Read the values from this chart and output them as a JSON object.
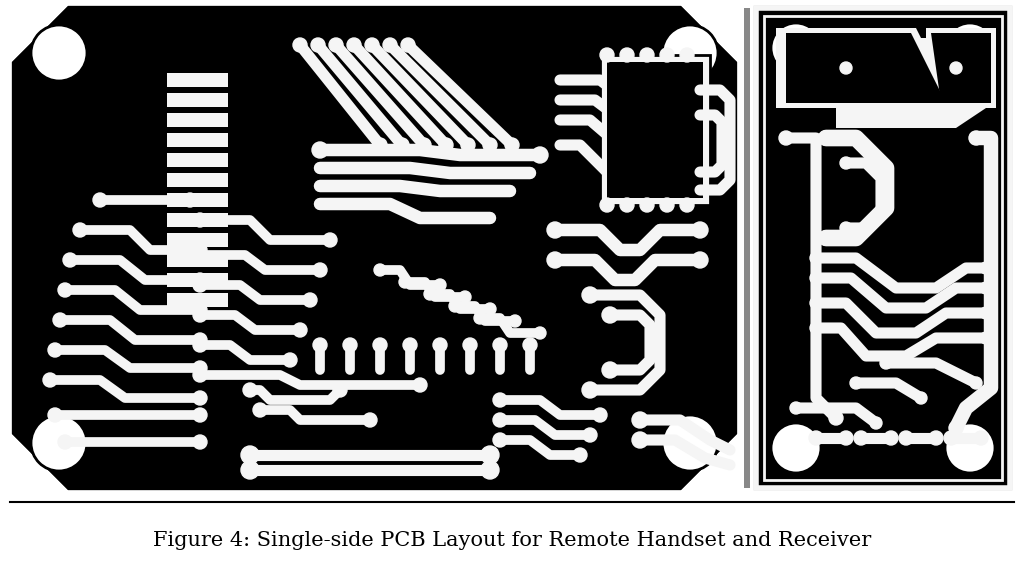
{
  "title": "Figure 4: Single-side PCB Layout for Remote Handset and Receiver",
  "title_fontsize": 15,
  "title_color": "#000000",
  "bg_color": "#ffffff",
  "trace_color": "#000000",
  "substrate_color": "#f0f0f0",
  "fig_width": 10.24,
  "fig_height": 5.75,
  "dpi": 100
}
